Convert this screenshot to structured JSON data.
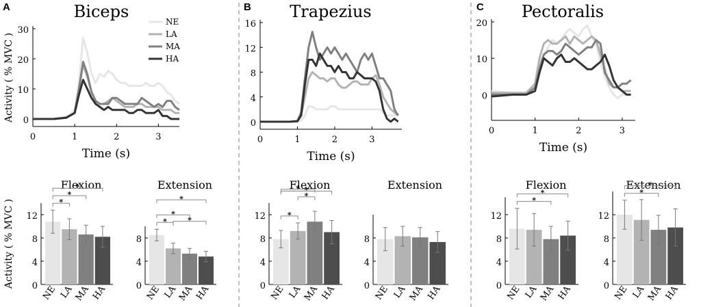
{
  "panels": [
    {
      "letter": "A",
      "title": "Biceps"
    },
    {
      "letter": "B",
      "title": "Trapezius"
    },
    {
      "letter": "C",
      "title": "Pectoralis"
    }
  ],
  "legend": [
    "NE",
    "LA",
    "MA",
    "HA"
  ],
  "chart_data": [
    {
      "type": "line",
      "panel": "A",
      "title": "Biceps",
      "xlabel": "Time (s)",
      "ylabel": "Activity ( % MVC )",
      "xlim": [
        0,
        3.5
      ],
      "ylim": [
        0,
        30
      ],
      "xticks": [
        0,
        1,
        2,
        3
      ],
      "yticks": [
        0,
        10,
        20,
        30
      ],
      "x": [
        0,
        0.5,
        0.8,
        1.0,
        1.1,
        1.2,
        1.3,
        1.4,
        1.5,
        1.6,
        1.7,
        1.8,
        1.9,
        2.0,
        2.1,
        2.2,
        2.3,
        2.4,
        2.5,
        2.6,
        2.7,
        2.8,
        2.9,
        3.0,
        3.1,
        3.2,
        3.3,
        3.4,
        3.5
      ],
      "series": [
        {
          "name": "NE",
          "color": "#e6e6e6",
          "values": [
            0,
            0,
            0.5,
            3,
            12,
            27,
            22,
            15,
            12,
            15,
            14,
            16,
            15,
            13,
            12,
            12,
            11,
            11,
            11,
            11,
            12,
            11,
            11,
            12,
            11,
            9,
            8,
            6,
            5
          ]
        },
        {
          "name": "LA",
          "color": "#b3b3b3",
          "values": [
            0,
            0,
            0.5,
            2,
            10,
            18,
            14,
            9,
            6,
            5,
            5,
            6,
            7,
            6,
            5,
            4,
            4,
            4,
            5,
            5,
            4,
            4,
            4,
            4,
            3,
            3,
            3,
            2,
            2
          ]
        },
        {
          "name": "MA",
          "color": "#808080",
          "values": [
            0,
            0,
            0.5,
            2,
            10,
            19,
            15,
            9,
            6,
            5,
            5,
            5,
            7,
            7,
            6,
            5,
            5,
            5,
            5,
            7,
            6,
            5,
            4,
            5,
            4,
            6,
            6,
            4,
            3
          ]
        },
        {
          "name": "HA",
          "color": "#333333",
          "values": [
            0,
            0,
            0.4,
            2,
            8,
            13,
            10,
            7,
            5,
            4,
            3,
            4,
            3,
            3,
            3,
            3,
            2,
            2,
            3,
            3,
            2,
            2,
            2,
            3,
            1,
            1,
            0,
            0,
            0
          ]
        }
      ]
    },
    {
      "type": "line",
      "panel": "B",
      "title": "Trapezius",
      "xlabel": "Time (s)",
      "ylabel": "",
      "xlim": [
        0,
        3.8
      ],
      "ylim": [
        0,
        16
      ],
      "xticks": [
        0,
        1,
        2,
        3
      ],
      "yticks": [
        0,
        4,
        8,
        12,
        16
      ],
      "x": [
        0,
        0.5,
        0.8,
        1.0,
        1.1,
        1.2,
        1.3,
        1.4,
        1.5,
        1.6,
        1.7,
        1.8,
        1.9,
        2.0,
        2.1,
        2.2,
        2.3,
        2.4,
        2.5,
        2.6,
        2.7,
        2.8,
        2.9,
        3.0,
        3.1,
        3.2,
        3.3,
        3.4,
        3.5,
        3.6,
        3.7
      ],
      "series": [
        {
          "name": "NE",
          "color": "#e6e6e6",
          "values": [
            0,
            0,
            0,
            0,
            0.2,
            1,
            2.5,
            2.4,
            2,
            2,
            2,
            2,
            2.5,
            2.5,
            2,
            2,
            2,
            2,
            2,
            2,
            2,
            2,
            2,
            2,
            2,
            2,
            1.5,
            1,
            1,
            1,
            1
          ]
        },
        {
          "name": "LA",
          "color": "#b3b3b3",
          "values": [
            0,
            0,
            0,
            0,
            1,
            4,
            7,
            8,
            7.5,
            7,
            7,
            6.5,
            7,
            7,
            6,
            5.5,
            5.5,
            6,
            6.5,
            6.5,
            6,
            6,
            6,
            7,
            7.5,
            6,
            4,
            3,
            2,
            1.5,
            1
          ]
        },
        {
          "name": "MA",
          "color": "#808080",
          "values": [
            0,
            0,
            0,
            0.1,
            1.5,
            7,
            12,
            14.5,
            12,
            10,
            11,
            12,
            11,
            12,
            11,
            10,
            11,
            10,
            9,
            8,
            10,
            11,
            10,
            11,
            9,
            7,
            7,
            6,
            5,
            2,
            1
          ]
        },
        {
          "name": "HA",
          "color": "#333333",
          "values": [
            0,
            0,
            0,
            0.1,
            1,
            6,
            10,
            10,
            9,
            11,
            10,
            9,
            9,
            8,
            9,
            8,
            8,
            7,
            7,
            8,
            7.5,
            7,
            7,
            7,
            6.5,
            5,
            2,
            0.5,
            0,
            0.5,
            0
          ]
        }
      ]
    },
    {
      "type": "line",
      "panel": "C",
      "title": "Pectoralis",
      "xlabel": "Time (s)",
      "ylabel": "",
      "xlim": [
        0,
        3.3
      ],
      "ylim": [
        -5,
        20
      ],
      "xticks": [
        0,
        1,
        2,
        3
      ],
      "yticks": [
        0,
        10,
        20
      ],
      "x": [
        0,
        0.5,
        0.8,
        1.0,
        1.1,
        1.2,
        1.3,
        1.4,
        1.5,
        1.6,
        1.7,
        1.8,
        1.9,
        2.0,
        2.1,
        2.2,
        2.3,
        2.4,
        2.5,
        2.6,
        2.7,
        2.8,
        2.9,
        3.0,
        3.1,
        3.2
      ],
      "series": [
        {
          "name": "NE",
          "color": "#e6e6e6",
          "values": [
            1,
            0.5,
            0.5,
            3,
            9,
            11,
            13,
            15,
            14,
            15,
            17,
            18,
            17,
            16,
            18,
            19,
            16,
            14,
            9,
            5,
            2,
            0,
            -1,
            0,
            0,
            0
          ]
        },
        {
          "name": "LA",
          "color": "#b3b3b3",
          "values": [
            0.5,
            0.5,
            0.5,
            3,
            10,
            14,
            15,
            14,
            14,
            15,
            16,
            14,
            16,
            15,
            14,
            15,
            16,
            15,
            11,
            7,
            3,
            2,
            2,
            1,
            1,
            1
          ]
        },
        {
          "name": "MA",
          "color": "#808080",
          "values": [
            0,
            0,
            0,
            2,
            7,
            11,
            12,
            12,
            11,
            12,
            14,
            13,
            12,
            11,
            12,
            13,
            13,
            15,
            14,
            6,
            4,
            2,
            2,
            3,
            3,
            4
          ]
        },
        {
          "name": "HA",
          "color": "#333333",
          "values": [
            -0.5,
            0,
            0,
            1,
            6,
            10,
            9,
            8,
            10,
            11,
            9,
            9,
            10,
            9,
            8,
            7,
            7,
            8,
            9,
            11,
            8,
            4,
            2,
            1,
            0,
            0
          ]
        }
      ]
    },
    {
      "type": "bar",
      "panel": "A",
      "title": "Flexion",
      "ylabel": "Activity ( % MVC )",
      "categories": [
        "NE",
        "LA",
        "MA",
        "HA"
      ],
      "ylim": [
        0,
        14
      ],
      "yticks": [
        0,
        4,
        8,
        12
      ],
      "values": [
        10.8,
        9.5,
        8.6,
        8.2
      ],
      "errors": [
        2,
        1.8,
        1.6,
        1.8
      ],
      "colors": [
        "#e6e6e6",
        "#b3b3b3",
        "#808080",
        "#4d4d4d"
      ],
      "significance": [
        [
          0,
          1
        ],
        [
          0,
          2
        ],
        [
          0,
          3
        ]
      ]
    },
    {
      "type": "bar",
      "panel": "A",
      "title": "Extension",
      "ylabel": "",
      "categories": [
        "NE",
        "LA",
        "MA",
        "HA"
      ],
      "ylim": [
        0,
        10
      ],
      "yticks": [
        0,
        4,
        8
      ],
      "values": [
        8.5,
        6.2,
        5.3,
        4.8
      ],
      "errors": [
        1,
        0.9,
        0.9,
        0.9
      ],
      "colors": [
        "#e6e6e6",
        "#b3b3b3",
        "#808080",
        "#4d4d4d"
      ],
      "significance": [
        [
          0,
          1
        ],
        [
          0,
          2
        ],
        [
          0,
          3
        ],
        [
          1,
          3
        ]
      ]
    },
    {
      "type": "bar",
      "panel": "B",
      "title": "Flexion",
      "ylabel": "",
      "categories": [
        "NE",
        "LA",
        "MA",
        "HA"
      ],
      "ylim": [
        0,
        14
      ],
      "yticks": [
        0,
        4,
        8,
        12
      ],
      "values": [
        7.8,
        9.2,
        10.8,
        9
      ],
      "errors": [
        1.5,
        1.4,
        1.8,
        2
      ],
      "colors": [
        "#e6e6e6",
        "#b3b3b3",
        "#808080",
        "#4d4d4d"
      ],
      "significance": [
        [
          0,
          1
        ],
        [
          0,
          2
        ],
        [
          0,
          3
        ],
        [
          1,
          2
        ]
      ]
    },
    {
      "type": "bar",
      "panel": "B",
      "title": "Extension",
      "ylabel": "",
      "categories": [
        "NE",
        "LA",
        "MA",
        "HA"
      ],
      "ylim": [
        0,
        12
      ],
      "yticks": [
        0,
        4,
        8
      ],
      "values": [
        7.8,
        8.3,
        8.1,
        7.3
      ],
      "errors": [
        2,
        1.7,
        1.7,
        1.8
      ],
      "colors": [
        "#e6e6e6",
        "#b3b3b3",
        "#808080",
        "#4d4d4d"
      ],
      "significance": []
    },
    {
      "type": "bar",
      "panel": "C",
      "title": "Flexion",
      "ylabel": "",
      "categories": [
        "NE",
        "LA",
        "MA",
        "HA"
      ],
      "ylim": [
        0,
        15
      ],
      "yticks": [
        0,
        4,
        8,
        12
      ],
      "values": [
        9.6,
        9.4,
        7.8,
        8.4
      ],
      "errors": [
        3.5,
        2.8,
        2.2,
        2.5
      ],
      "colors": [
        "#e6e6e6",
        "#b3b3b3",
        "#808080",
        "#4d4d4d"
      ],
      "significance": [
        [
          0,
          2
        ],
        [
          0,
          3
        ]
      ]
    },
    {
      "type": "bar",
      "panel": "C",
      "title": "Extension",
      "ylabel": "",
      "categories": [
        "NE",
        "LA",
        "MA",
        "HA"
      ],
      "ylim": [
        0,
        16
      ],
      "yticks": [
        0,
        4,
        8,
        12
      ],
      "values": [
        12,
        11.1,
        9.4,
        9.8
      ],
      "errors": [
        2.5,
        3.5,
        2.5,
        3.2
      ],
      "colors": [
        "#e6e6e6",
        "#b3b3b3",
        "#808080",
        "#4d4d4d"
      ],
      "significance": [
        [
          0,
          2
        ],
        [
          0,
          3
        ]
      ]
    }
  ]
}
